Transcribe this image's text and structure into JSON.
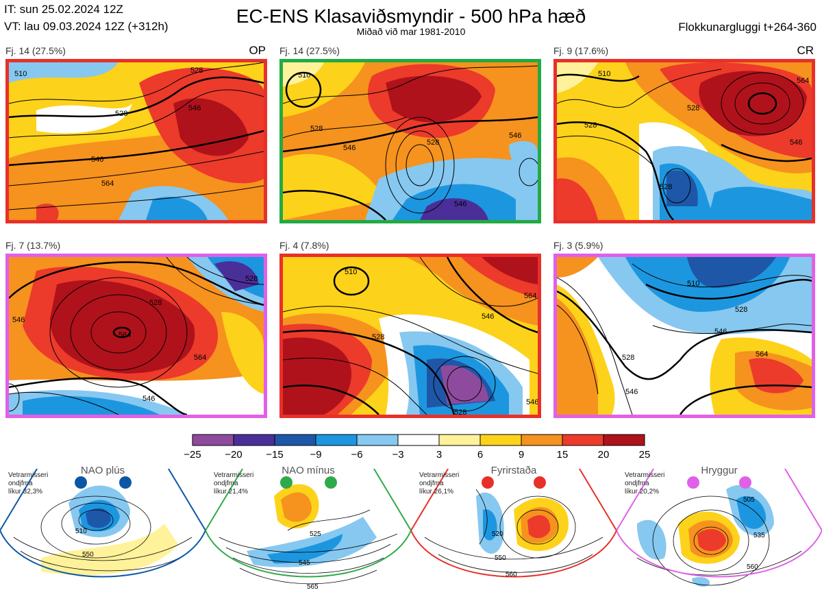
{
  "header": {
    "it": "IT: sun 25.02.2024 12Z",
    "vt": "VT: lau 09.03.2024 12Z  (+312h)",
    "title": "EC-ENS Klasaviðsmyndir - 500 hPa hæð",
    "subtitle": "Miðað við mar 1981-2010",
    "window": "Flokkunargluggi t+264-360"
  },
  "panels": [
    {
      "label": "Fj. 14 (27.5%)",
      "tag": "OP",
      "border": "#e8302a",
      "contours": [
        "510",
        "528",
        "546",
        "564",
        "528",
        "546"
      ]
    },
    {
      "label": "Fj. 14 (27.5%)",
      "tag": "",
      "border": "#22aa44",
      "contours": [
        "510",
        "528",
        "546",
        "528",
        "546",
        "546"
      ]
    },
    {
      "label": "Fj. 9 (17.6%)",
      "tag": "CR",
      "border": "#e8302a",
      "contours": [
        "510",
        "528",
        "564",
        "546",
        "528",
        "528"
      ]
    },
    {
      "label": "Fj. 7 (13.7%)",
      "tag": "",
      "border": "#e060e8",
      "contours": [
        "528",
        "546",
        "564",
        "564",
        "546",
        "528"
      ]
    },
    {
      "label": "Fj. 4 (7.8%)",
      "tag": "",
      "border": "#e8302a",
      "contours": [
        "510",
        "528",
        "546",
        "528",
        "546",
        "564"
      ]
    },
    {
      "label": "Fj. 3 (5.9%)",
      "tag": "",
      "border": "#e060e8",
      "contours": [
        "510",
        "528",
        "546",
        "528",
        "564",
        "546"
      ]
    }
  ],
  "colorbar": {
    "ticks": [
      "−25",
      "−20",
      "−15",
      "−9",
      "−6",
      "−3",
      "3",
      "6",
      "9",
      "15",
      "20",
      "25"
    ],
    "colors": [
      "#8e4a9c",
      "#4a2f99",
      "#1e57a8",
      "#1d96e0",
      "#86c8f0",
      "#ffffff",
      "#fff29a",
      "#fdd21a",
      "#f6921e",
      "#ec3a2b",
      "#b0121b"
    ]
  },
  "regimes": [
    {
      "name": "NAO plús",
      "color": "#0b57a6",
      "info": [
        "Vetrarmisseri",
        "ondjfma",
        "líkur 32,3%"
      ],
      "labels": [
        "510",
        "550"
      ]
    },
    {
      "name": "NAO mínus",
      "color": "#2eaa4a",
      "info": [
        "Vetrarmisseri",
        "ondjfma",
        "líkur 21,4%"
      ],
      "labels": [
        "525",
        "545",
        "565"
      ]
    },
    {
      "name": "Fyrirstaða",
      "color": "#e8302a",
      "info": [
        "Vetrarmisseri",
        "ondjfma",
        "líkur 26,1%"
      ],
      "labels": [
        "520",
        "550",
        "560"
      ]
    },
    {
      "name": "Hryggur",
      "color": "#e060e8",
      "info": [
        "Vetrarmisseri",
        "ondjfma",
        "líkur 20,2%"
      ],
      "labels": [
        "505",
        "535",
        "560"
      ]
    }
  ]
}
